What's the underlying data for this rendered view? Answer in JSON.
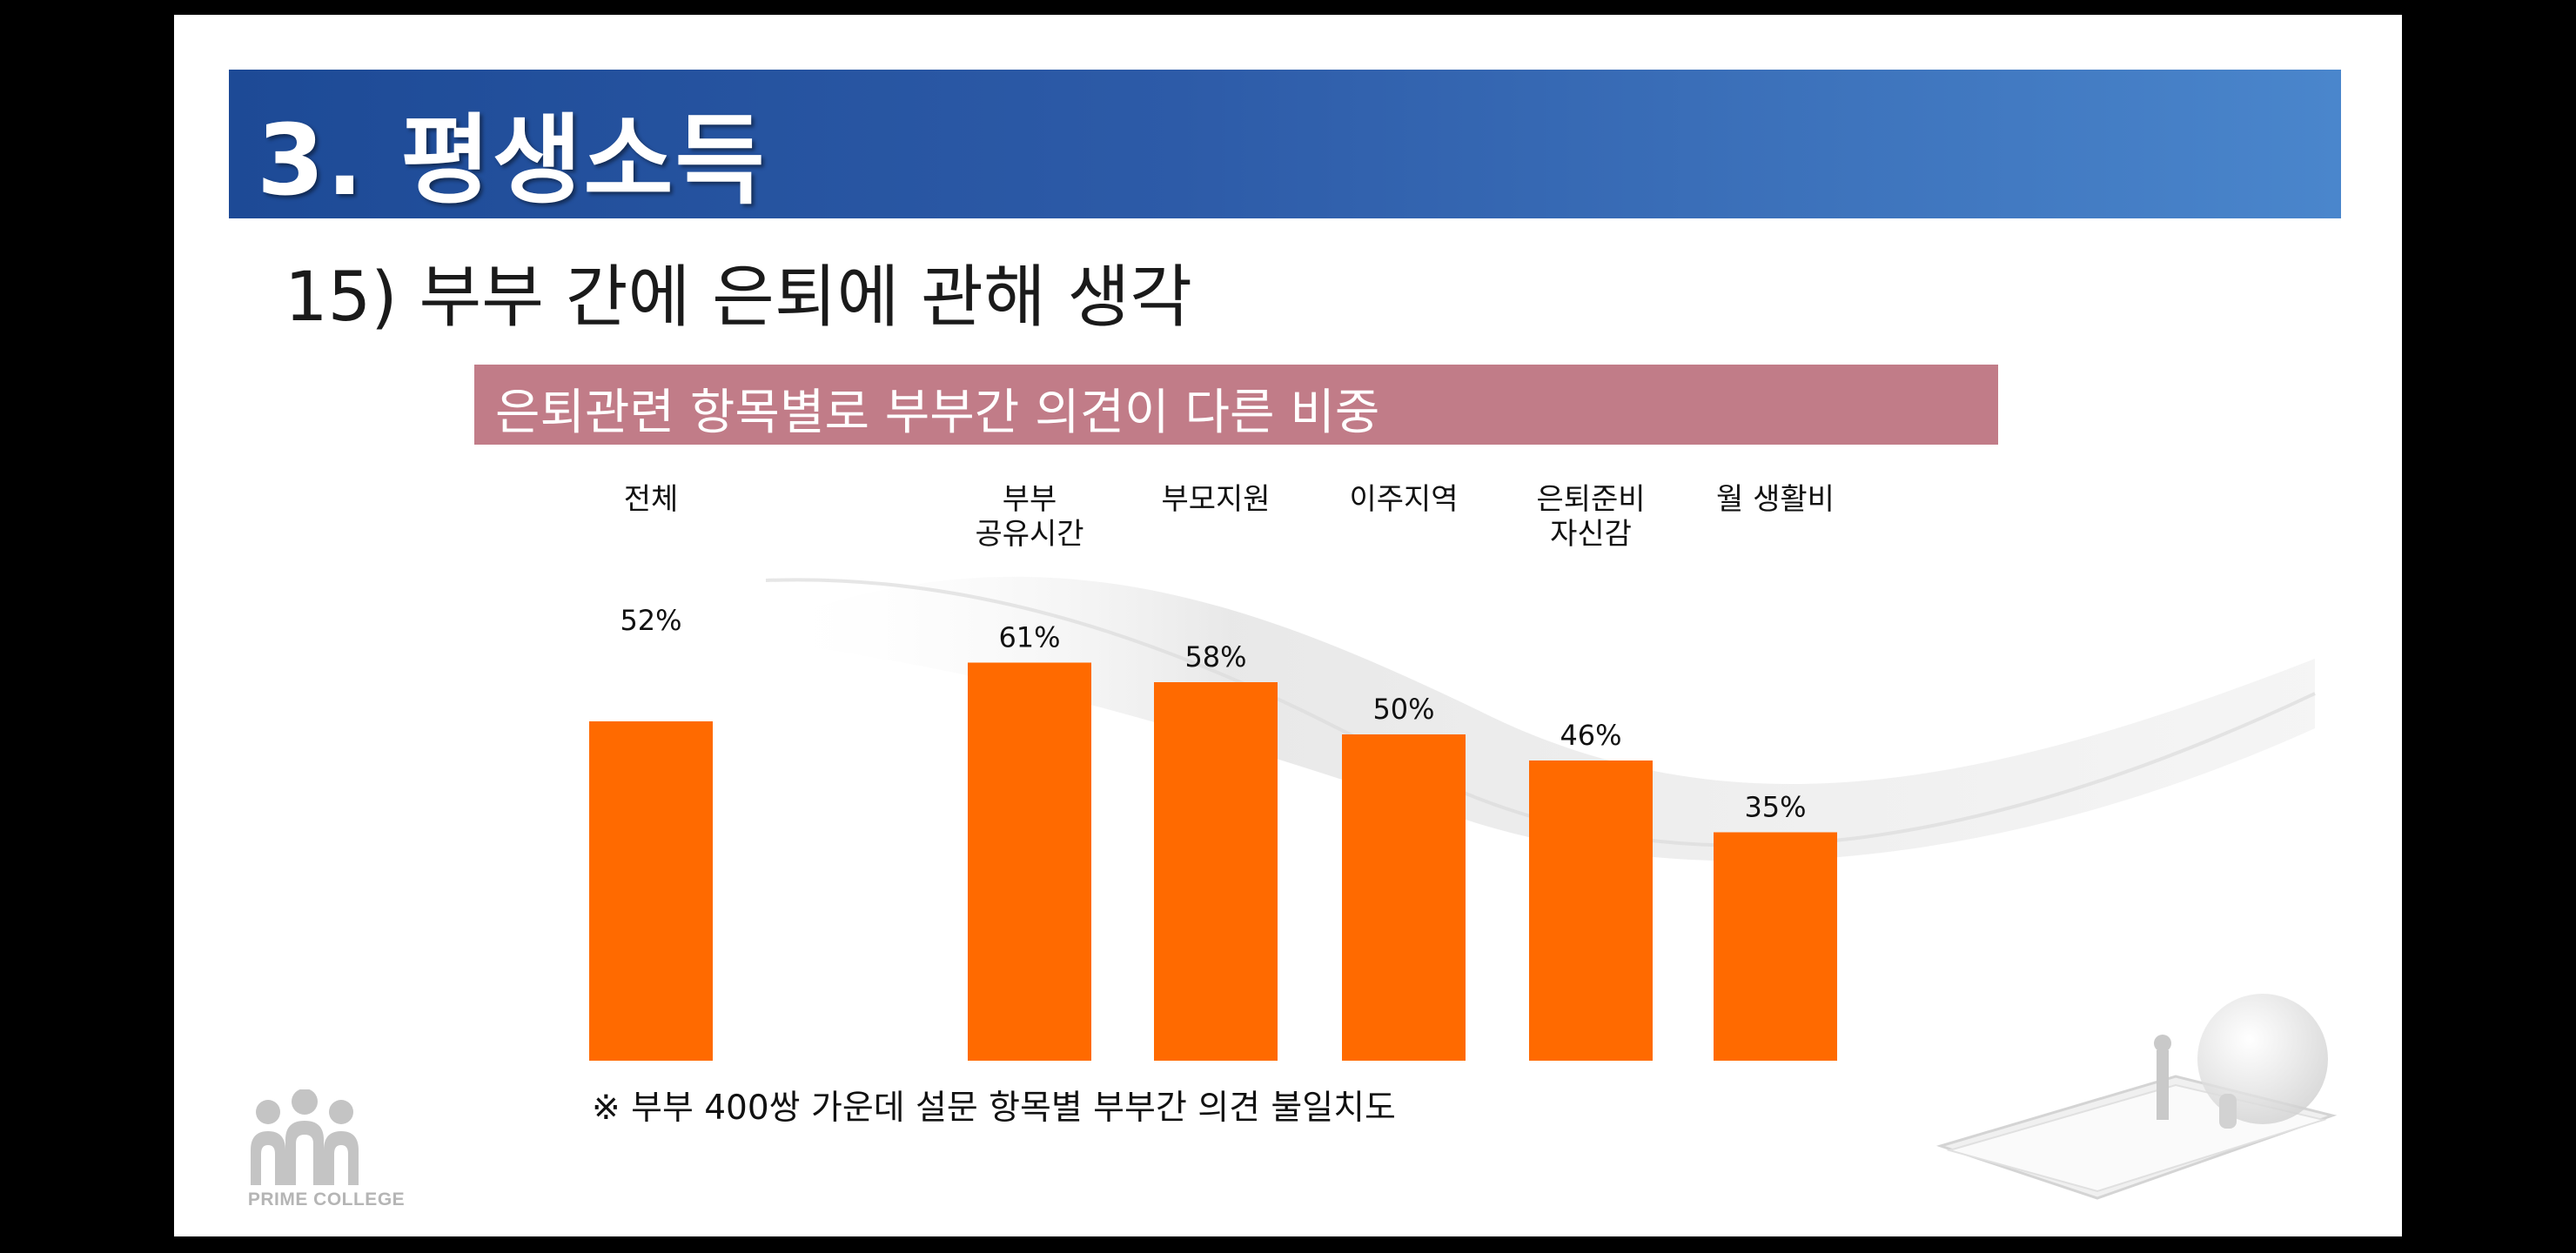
{
  "slide": {
    "title": "3. 평생소득",
    "subtitle": "15) 부부 간에 은퇴에 관해 생각",
    "banner": "은퇴관련 항목별로 부부간 의견이 다른 비중",
    "footnote": "※ 부부 400쌍 가운데 설문 항목별 부부간 의견 불일치도",
    "logo_text": "PRIME COLLEGE"
  },
  "colors": {
    "bar": "#ff6a00",
    "title_bar": "#2d5ba8",
    "banner": "#c17c88"
  },
  "chart_data": {
    "type": "bar",
    "categories": [
      [
        "전체"
      ],
      [
        "부부",
        "공유시간"
      ],
      [
        "부모지원"
      ],
      [
        "이주지역"
      ],
      [
        "은퇴준비",
        "자신감"
      ],
      [
        "월 생활비"
      ]
    ],
    "values": [
      52,
      61,
      58,
      50,
      46,
      35
    ],
    "value_labels": [
      "52%",
      "61%",
      "58%",
      "50%",
      "46%",
      "35%"
    ],
    "unit": "%",
    "title": "은퇴관련 항목별로 부부간 의견이 다른 비중",
    "xlabel": "",
    "ylabel": "",
    "grid": false,
    "legend": "none"
  }
}
